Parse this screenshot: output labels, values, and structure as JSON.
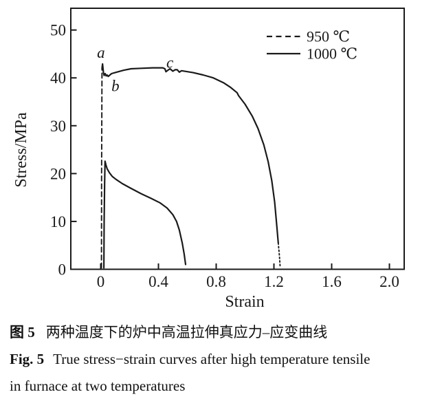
{
  "colors": {
    "ink": "#1a1a1a",
    "background": "#ffffff"
  },
  "chart_data": {
    "type": "line",
    "title": "",
    "xlabel": "Strain",
    "ylabel": "Stress/MPa",
    "xlim": [
      -0.21,
      2.1
    ],
    "ylim": [
      0,
      54.5
    ],
    "grid": false,
    "xticks": [
      {
        "v": 0.0,
        "label": "0"
      },
      {
        "v": 0.4,
        "label": "0.4"
      },
      {
        "v": 0.8,
        "label": "0.8"
      },
      {
        "v": 1.2,
        "label": "1.2"
      },
      {
        "v": 1.6,
        "label": "1.6"
      },
      {
        "v": 2.0,
        "label": "2.0"
      }
    ],
    "yticks": [
      {
        "v": 0,
        "label": "0"
      },
      {
        "v": 10,
        "label": "10"
      },
      {
        "v": 20,
        "label": "20"
      },
      {
        "v": 30,
        "label": "30"
      },
      {
        "v": 40,
        "label": "40"
      },
      {
        "v": 50,
        "label": "50"
      }
    ],
    "legend": {
      "position": "top-right",
      "items": [
        {
          "label": "950 ℃",
          "style": "dashed"
        },
        {
          "label": "1000 ℃",
          "style": "solid"
        }
      ]
    },
    "series": [
      {
        "name": "950 ℃",
        "key": "950",
        "legend_style": "dashed",
        "segments": [
          {
            "style": "dashed",
            "points": [
              [
                0.005,
                0.3
              ],
              [
                0.006,
                20.0
              ],
              [
                0.008,
                35.0
              ],
              [
                0.009,
                42.0
              ]
            ]
          },
          {
            "style": "solid",
            "points": [
              [
                0.009,
                42.0
              ],
              [
                0.013,
                42.9
              ],
              [
                0.019,
                41.1
              ],
              [
                0.024,
                40.5
              ],
              [
                0.031,
                40.9
              ],
              [
                0.038,
                40.4
              ],
              [
                0.045,
                40.6
              ],
              [
                0.052,
                40.3
              ],
              [
                0.075,
                40.9
              ],
              [
                0.11,
                41.2
              ],
              [
                0.16,
                41.6
              ],
              [
                0.21,
                41.9
              ],
              [
                0.28,
                42.0
              ],
              [
                0.36,
                42.1
              ],
              [
                0.43,
                42.1
              ],
              [
                0.445,
                41.9
              ],
              [
                0.452,
                41.3
              ],
              [
                0.465,
                41.6
              ],
              [
                0.48,
                41.9
              ],
              [
                0.5,
                41.4
              ],
              [
                0.515,
                41.7
              ],
              [
                0.53,
                41.7
              ],
              [
                0.545,
                41.2
              ],
              [
                0.56,
                41.5
              ],
              [
                0.6,
                41.3
              ],
              [
                0.64,
                41.1
              ],
              [
                0.71,
                40.6
              ],
              [
                0.78,
                40.0
              ],
              [
                0.85,
                39.0
              ],
              [
                0.9,
                38.0
              ],
              [
                0.945,
                36.9
              ],
              [
                0.955,
                36.3
              ],
              [
                1.0,
                34.5
              ],
              [
                1.05,
                32.0
              ],
              [
                1.09,
                29.4
              ],
              [
                1.13,
                26.0
              ],
              [
                1.16,
                22.5
              ],
              [
                1.185,
                18.5
              ],
              [
                1.205,
                14.0
              ],
              [
                1.22,
                9.0
              ],
              [
                1.23,
                5.5
              ]
            ]
          },
          {
            "style": "dotted",
            "points": [
              [
                1.23,
                5.5
              ],
              [
                1.238,
                2.8
              ],
              [
                1.243,
                0.6
              ]
            ]
          }
        ]
      },
      {
        "name": "1000 ℃",
        "key": "1000",
        "legend_style": "solid",
        "segments": [
          {
            "style": "solid",
            "points": [
              [
                0.022,
                0.3
              ],
              [
                0.024,
                10.0
              ],
              [
                0.027,
                18.0
              ],
              [
                0.03,
                22.6
              ],
              [
                0.036,
                21.8
              ],
              [
                0.045,
                21.0
              ],
              [
                0.06,
                20.2
              ],
              [
                0.08,
                19.4
              ],
              [
                0.105,
                18.8
              ],
              [
                0.15,
                17.9
              ],
              [
                0.21,
                16.9
              ],
              [
                0.28,
                15.8
              ],
              [
                0.35,
                14.8
              ],
              [
                0.41,
                13.9
              ],
              [
                0.46,
                12.8
              ],
              [
                0.5,
                11.4
              ],
              [
                0.525,
                10.0
              ],
              [
                0.545,
                8.2
              ],
              [
                0.565,
                5.5
              ],
              [
                0.578,
                3.2
              ],
              [
                0.588,
                1.0
              ]
            ]
          }
        ]
      }
    ],
    "annotations": [
      {
        "text": "a",
        "x": 0.002,
        "y": 44.2
      },
      {
        "text": "b",
        "x": 0.102,
        "y": 37.2
      },
      {
        "text": "c",
        "x": 0.479,
        "y": 42.1
      }
    ]
  },
  "caption": {
    "zh_label": "图 5",
    "zh_text": "两种温度下的炉中高温拉伸真应力–应变曲线",
    "en_label": "Fig. 5",
    "en_line1": "True stress−strain curves after high temperature tensile",
    "en_line2": "in furnace at two temperatures"
  }
}
